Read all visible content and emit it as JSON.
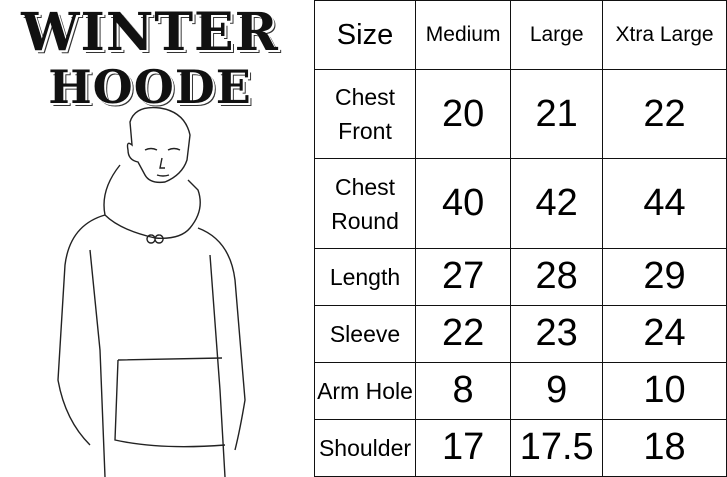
{
  "title": {
    "line1": "WINTER",
    "line2": "HOODE"
  },
  "table": {
    "headers": [
      "Size",
      "Medium",
      "Large",
      "Xtra Large"
    ],
    "rows": [
      {
        "label": "Chest Front",
        "values": [
          "20",
          "21",
          "22"
        ]
      },
      {
        "label": "Chest Round",
        "values": [
          "40",
          "42",
          "44"
        ]
      },
      {
        "label": "Length",
        "values": [
          "27",
          "28",
          "29"
        ]
      },
      {
        "label": "Sleeve",
        "values": [
          "22",
          "23",
          "24"
        ]
      },
      {
        "label": "Arm Hole",
        "values": [
          "8",
          "9",
          "10"
        ]
      },
      {
        "label": "Shoulder",
        "values": [
          "17",
          "17.5",
          "18"
        ]
      }
    ]
  }
}
